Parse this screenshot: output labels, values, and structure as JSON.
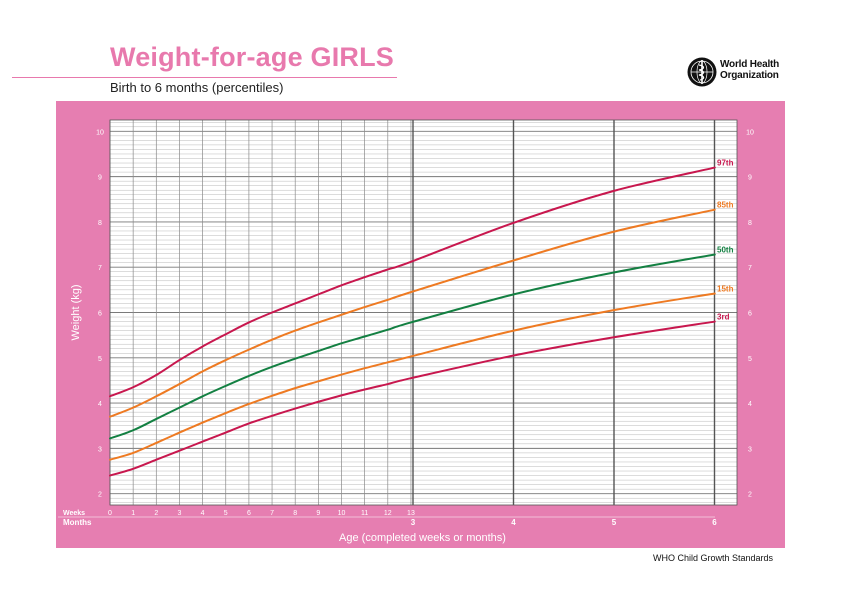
{
  "header": {
    "title": "Weight-for-age GIRLS",
    "subtitle": "Birth to 6 months (percentiles)"
  },
  "logo": {
    "line1": "World Health",
    "line2": "Organization"
  },
  "footer": "WHO Child Growth Standards",
  "colors": {
    "panel": "#e67eb1",
    "title": "#e879ad",
    "p3": "#c8174e",
    "p15": "#ee7a22",
    "p50": "#138042",
    "p85": "#ee7a22",
    "p97": "#c8174e"
  },
  "chart_data": {
    "type": "line",
    "ylabel": "Weight (kg)",
    "xlabel": "Age (completed weeks or months)",
    "x_unit_labels": {
      "weeks": "Weeks",
      "months": "Months"
    },
    "ylim": [
      1.75,
      10.25
    ],
    "y_ticks": [
      2,
      3,
      4,
      5,
      6,
      7,
      8,
      9,
      10
    ],
    "week_ticks": [
      "0",
      "1",
      "2",
      "3",
      "4",
      "5",
      "6",
      "7",
      "8",
      "9",
      "10",
      "11",
      "12",
      "13"
    ],
    "month_ticks": [
      "3",
      "4",
      "5",
      "6"
    ],
    "grid": true,
    "x_weeks": [
      0,
      1,
      2,
      3,
      4,
      5,
      6,
      7,
      8,
      9,
      10,
      11,
      12,
      13,
      17.4,
      21.7,
      26.1
    ],
    "series": [
      {
        "name": "3rd",
        "color_key": "p3",
        "values": [
          2.4,
          2.55,
          2.75,
          2.95,
          3.15,
          3.35,
          3.55,
          3.72,
          3.88,
          4.03,
          4.17,
          4.3,
          4.42,
          4.55,
          5.05,
          5.45,
          5.8
        ]
      },
      {
        "name": "15th",
        "color_key": "p15",
        "values": [
          2.75,
          2.9,
          3.12,
          3.35,
          3.57,
          3.78,
          3.98,
          4.16,
          4.33,
          4.48,
          4.63,
          4.77,
          4.9,
          5.03,
          5.6,
          6.05,
          6.42
        ]
      },
      {
        "name": "50th",
        "color_key": "p50",
        "values": [
          3.22,
          3.4,
          3.65,
          3.9,
          4.15,
          4.38,
          4.6,
          4.8,
          4.98,
          5.15,
          5.32,
          5.47,
          5.62,
          5.78,
          6.4,
          6.88,
          7.28
        ]
      },
      {
        "name": "85th",
        "color_key": "p85",
        "values": [
          3.7,
          3.9,
          4.15,
          4.42,
          4.7,
          4.95,
          5.18,
          5.4,
          5.6,
          5.78,
          5.95,
          6.12,
          6.28,
          6.45,
          7.15,
          7.78,
          8.27
        ]
      },
      {
        "name": "97th",
        "color_key": "p97",
        "values": [
          4.15,
          4.35,
          4.62,
          4.95,
          5.25,
          5.52,
          5.78,
          6.0,
          6.2,
          6.4,
          6.6,
          6.78,
          6.95,
          7.12,
          7.98,
          8.68,
          9.2
        ]
      }
    ]
  }
}
